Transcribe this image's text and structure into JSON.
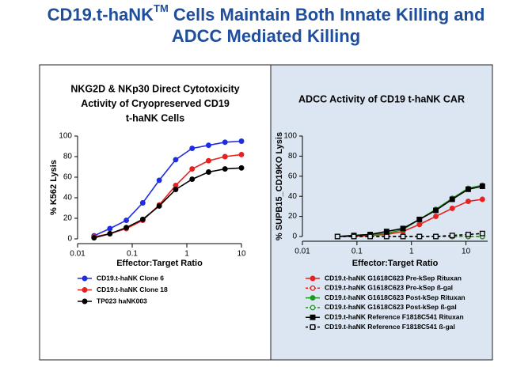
{
  "title_parts": [
    "CD19.t-haNK",
    "TM",
    "Cells Maintain Both Innate Killing and",
    "ADCC Mediated Killing"
  ],
  "chart_data": [
    {
      "type": "line",
      "title": [
        "NKG2D & NKp30 Direct Cytotoxicity",
        "Activity of Cryopreserved CD19",
        "t-haNK Cells"
      ],
      "x_label": "Effector:Target Ratio",
      "y_label": "% K562 Lysis",
      "x_scale": "log",
      "x": [
        0.02,
        0.039,
        0.078,
        0.156,
        0.3125,
        0.625,
        1.25,
        2.5,
        5,
        10
      ],
      "xlim": [
        0.01,
        10
      ],
      "xticks": [
        0.01,
        0.1,
        1,
        10
      ],
      "ylim": [
        0,
        100
      ],
      "yticks": [
        0,
        20,
        40,
        60,
        80,
        100
      ],
      "series": [
        {
          "name": "CD19.t-haNK Clone 6",
          "color": "#1f2de0",
          "marker": "circle",
          "filled": true,
          "dashed": false,
          "values": [
            3,
            10,
            18,
            35,
            57,
            77,
            88,
            91,
            94,
            95
          ]
        },
        {
          "name": "CD19.t-haNK Clone 18",
          "color": "#e8201e",
          "marker": "circle",
          "filled": true,
          "dashed": false,
          "values": [
            2,
            5,
            10,
            18,
            33,
            52,
            68,
            76,
            80,
            82
          ]
        },
        {
          "name": "TP023 haNK003",
          "color": "#000000",
          "marker": "circle",
          "filled": true,
          "dashed": false,
          "values": [
            1,
            5,
            11,
            19,
            32,
            48,
            58,
            65,
            68,
            69
          ]
        }
      ]
    },
    {
      "type": "line",
      "title": [
        "ADCC Activity of CD19 t-haNK CAR"
      ],
      "x_label": "Effector:Target Ratio",
      "y_label": "% SUPB15_CD19KO Lysis",
      "x_scale": "log",
      "x": [
        0.044,
        0.088,
        0.175,
        0.35,
        0.7,
        1.4,
        2.8,
        5.6,
        11,
        20
      ],
      "xlim": [
        0.01,
        25
      ],
      "xticks": [
        0.01,
        0.1,
        1,
        10
      ],
      "ylim": [
        0,
        100
      ],
      "yticks": [
        0,
        20,
        40,
        60,
        80,
        100
      ],
      "series": [
        {
          "name": "CD19.t-haNK G1618C623 Pre-kSep Rituxan",
          "color": "#e8201e",
          "marker": "circle",
          "filled": true,
          "dashed": false,
          "values": [
            0,
            0,
            1,
            2,
            5,
            12,
            20,
            28,
            35,
            37
          ]
        },
        {
          "name": "CD19.t-haNK G1618C623 Pre-kSep ß-gal",
          "color": "#e8201e",
          "marker": "circle",
          "filled": false,
          "dashed": true,
          "values": [
            0,
            0,
            0,
            0,
            0,
            0,
            0,
            0,
            0,
            0
          ]
        },
        {
          "name": "CD19.t-haNK G1618C623 Post-kSep Rituxan",
          "color": "#1c9a1c",
          "marker": "circle",
          "filled": true,
          "dashed": false,
          "values": [
            0,
            1,
            2,
            3,
            7,
            17,
            27,
            38,
            48,
            51
          ]
        },
        {
          "name": "CD19.t-haNK G1618C623 Post-kSep ß-gal",
          "color": "#1c9a1c",
          "marker": "circle",
          "filled": false,
          "dashed": true,
          "values": [
            0,
            0,
            0,
            0,
            0,
            0,
            0,
            0,
            0,
            0
          ]
        },
        {
          "name": "CD19.t-haNK Reference F1818C541 Rituxan",
          "color": "#000000",
          "marker": "square",
          "filled": true,
          "dashed": false,
          "values": [
            0,
            1,
            2,
            5,
            8,
            17,
            26,
            37,
            47,
            50
          ]
        },
        {
          "name": "CD19.t-haNK Reference F1818C541 ß-gal",
          "color": "#000000",
          "marker": "square",
          "filled": false,
          "dashed": true,
          "values": [
            0,
            0,
            0,
            0,
            0,
            0,
            0,
            1,
            2,
            3
          ]
        }
      ]
    }
  ]
}
